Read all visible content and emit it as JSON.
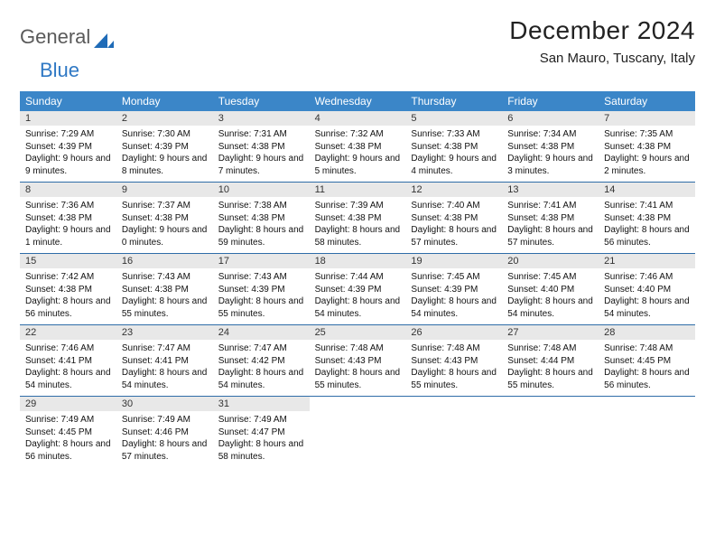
{
  "brand": {
    "word1": "General",
    "word2": "Blue"
  },
  "title": "December 2024",
  "location": "San Mauro, Tuscany, Italy",
  "colors": {
    "header_bg": "#3b86c8",
    "header_text": "#ffffff",
    "daynum_bg": "#e8e8e8",
    "divider": "#2f6da8",
    "brand_gray": "#5a5a5a",
    "brand_blue": "#2f78c4"
  },
  "day_names": [
    "Sunday",
    "Monday",
    "Tuesday",
    "Wednesday",
    "Thursday",
    "Friday",
    "Saturday"
  ],
  "weeks": [
    [
      {
        "n": "1",
        "sr": "7:29 AM",
        "ss": "4:39 PM",
        "dl": "9 hours and 9 minutes."
      },
      {
        "n": "2",
        "sr": "7:30 AM",
        "ss": "4:39 PM",
        "dl": "9 hours and 8 minutes."
      },
      {
        "n": "3",
        "sr": "7:31 AM",
        "ss": "4:38 PM",
        "dl": "9 hours and 7 minutes."
      },
      {
        "n": "4",
        "sr": "7:32 AM",
        "ss": "4:38 PM",
        "dl": "9 hours and 5 minutes."
      },
      {
        "n": "5",
        "sr": "7:33 AM",
        "ss": "4:38 PM",
        "dl": "9 hours and 4 minutes."
      },
      {
        "n": "6",
        "sr": "7:34 AM",
        "ss": "4:38 PM",
        "dl": "9 hours and 3 minutes."
      },
      {
        "n": "7",
        "sr": "7:35 AM",
        "ss": "4:38 PM",
        "dl": "9 hours and 2 minutes."
      }
    ],
    [
      {
        "n": "8",
        "sr": "7:36 AM",
        "ss": "4:38 PM",
        "dl": "9 hours and 1 minute."
      },
      {
        "n": "9",
        "sr": "7:37 AM",
        "ss": "4:38 PM",
        "dl": "9 hours and 0 minutes."
      },
      {
        "n": "10",
        "sr": "7:38 AM",
        "ss": "4:38 PM",
        "dl": "8 hours and 59 minutes."
      },
      {
        "n": "11",
        "sr": "7:39 AM",
        "ss": "4:38 PM",
        "dl": "8 hours and 58 minutes."
      },
      {
        "n": "12",
        "sr": "7:40 AM",
        "ss": "4:38 PM",
        "dl": "8 hours and 57 minutes."
      },
      {
        "n": "13",
        "sr": "7:41 AM",
        "ss": "4:38 PM",
        "dl": "8 hours and 57 minutes."
      },
      {
        "n": "14",
        "sr": "7:41 AM",
        "ss": "4:38 PM",
        "dl": "8 hours and 56 minutes."
      }
    ],
    [
      {
        "n": "15",
        "sr": "7:42 AM",
        "ss": "4:38 PM",
        "dl": "8 hours and 56 minutes."
      },
      {
        "n": "16",
        "sr": "7:43 AM",
        "ss": "4:38 PM",
        "dl": "8 hours and 55 minutes."
      },
      {
        "n": "17",
        "sr": "7:43 AM",
        "ss": "4:39 PM",
        "dl": "8 hours and 55 minutes."
      },
      {
        "n": "18",
        "sr": "7:44 AM",
        "ss": "4:39 PM",
        "dl": "8 hours and 54 minutes."
      },
      {
        "n": "19",
        "sr": "7:45 AM",
        "ss": "4:39 PM",
        "dl": "8 hours and 54 minutes."
      },
      {
        "n": "20",
        "sr": "7:45 AM",
        "ss": "4:40 PM",
        "dl": "8 hours and 54 minutes."
      },
      {
        "n": "21",
        "sr": "7:46 AM",
        "ss": "4:40 PM",
        "dl": "8 hours and 54 minutes."
      }
    ],
    [
      {
        "n": "22",
        "sr": "7:46 AM",
        "ss": "4:41 PM",
        "dl": "8 hours and 54 minutes."
      },
      {
        "n": "23",
        "sr": "7:47 AM",
        "ss": "4:41 PM",
        "dl": "8 hours and 54 minutes."
      },
      {
        "n": "24",
        "sr": "7:47 AM",
        "ss": "4:42 PM",
        "dl": "8 hours and 54 minutes."
      },
      {
        "n": "25",
        "sr": "7:48 AM",
        "ss": "4:43 PM",
        "dl": "8 hours and 55 minutes."
      },
      {
        "n": "26",
        "sr": "7:48 AM",
        "ss": "4:43 PM",
        "dl": "8 hours and 55 minutes."
      },
      {
        "n": "27",
        "sr": "7:48 AM",
        "ss": "4:44 PM",
        "dl": "8 hours and 55 minutes."
      },
      {
        "n": "28",
        "sr": "7:48 AM",
        "ss": "4:45 PM",
        "dl": "8 hours and 56 minutes."
      }
    ],
    [
      {
        "n": "29",
        "sr": "7:49 AM",
        "ss": "4:45 PM",
        "dl": "8 hours and 56 minutes."
      },
      {
        "n": "30",
        "sr": "7:49 AM",
        "ss": "4:46 PM",
        "dl": "8 hours and 57 minutes."
      },
      {
        "n": "31",
        "sr": "7:49 AM",
        "ss": "4:47 PM",
        "dl": "8 hours and 58 minutes."
      },
      null,
      null,
      null,
      null
    ]
  ],
  "labels": {
    "sunrise": "Sunrise:",
    "sunset": "Sunset:",
    "daylight": "Daylight:"
  }
}
